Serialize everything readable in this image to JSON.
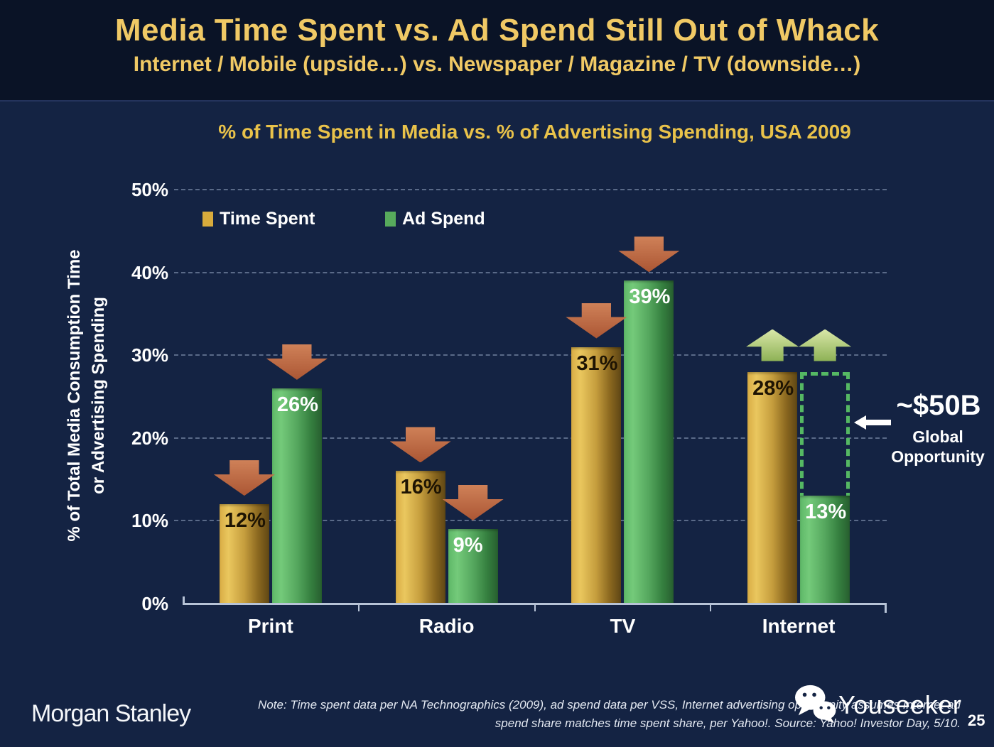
{
  "header": {
    "title": "Media Time Spent vs. Ad Spend Still Out of Whack",
    "subtitle": "Internet / Mobile (upside…) vs. Newspaper / Magazine / TV (downside…)"
  },
  "chart_data": {
    "type": "bar",
    "title": "% of Time Spent in Media vs. % of Advertising Spending, USA 2009",
    "categories": [
      "Print",
      "Radio",
      "TV",
      "Internet"
    ],
    "series": [
      {
        "name": "Time Spent",
        "values": [
          12,
          16,
          31,
          28
        ],
        "color_key": "gold",
        "label_color": "#1e1403"
      },
      {
        "name": "Ad Spend",
        "values": [
          26,
          9,
          39,
          13
        ],
        "color_key": "green",
        "label_color": "#ffffff"
      }
    ],
    "value_suffix": "%",
    "ylabel_line1": "% of Total Media Consumption Time",
    "ylabel_line2": "or Advertising Spending",
    "yticks": [
      0,
      10,
      20,
      30,
      40,
      50
    ],
    "ylim": [
      0,
      50
    ],
    "grid": "dashed-horizontal",
    "legend_position": "top-left",
    "trend_arrows": [
      [
        "down",
        "down"
      ],
      [
        "down",
        "down"
      ],
      [
        "down",
        "down"
      ],
      [
        "up",
        "up"
      ]
    ],
    "annotation": {
      "value": "~$50B",
      "caption_line1": "Global",
      "caption_line2": "Opportunity",
      "target_category": "Internet",
      "dotted_box_from_pct": 28,
      "dotted_box_to_pct": 13
    }
  },
  "colors": {
    "slide_bg": "#142343",
    "header_bg": "#0a1326",
    "title_gold": "#f0c965",
    "chart_title_gold": "#e9c24a",
    "bar_gold_gradient": [
      "#d9ad45",
      "#eac75e",
      "#c59d3d",
      "#8a671f",
      "#5f4715"
    ],
    "bar_green_gradient": [
      "#5eb868",
      "#74ca7a",
      "#55a75e",
      "#357f3f",
      "#275f2f"
    ],
    "legend_gold": "#d8ab3c",
    "legend_green": "#57aa5c",
    "arrow_down_gradient": [
      "#cf8158",
      "#ab5634"
    ],
    "arrow_up_gradient": [
      "#d9e7a8",
      "#8db155"
    ],
    "dotted_box_green": "#55b863",
    "axis_color": "#b7c3d6",
    "grid_color": "#9fb0cc",
    "text_white": "#ffffff",
    "bar_label_dark": "#1e1403"
  },
  "footer": {
    "brand": "Morgan Stanley",
    "note_line1": "Note: Time spent data per NA Technographics (2009), ad spend data per VSS, Internet advertising opportunity assumes Internet ad",
    "note_line2": "spend share matches time spent share, per Yahoo!. Source: Yahoo! Investor Day, 5/10.",
    "watermark": "Youseeker",
    "page_number": "25"
  }
}
